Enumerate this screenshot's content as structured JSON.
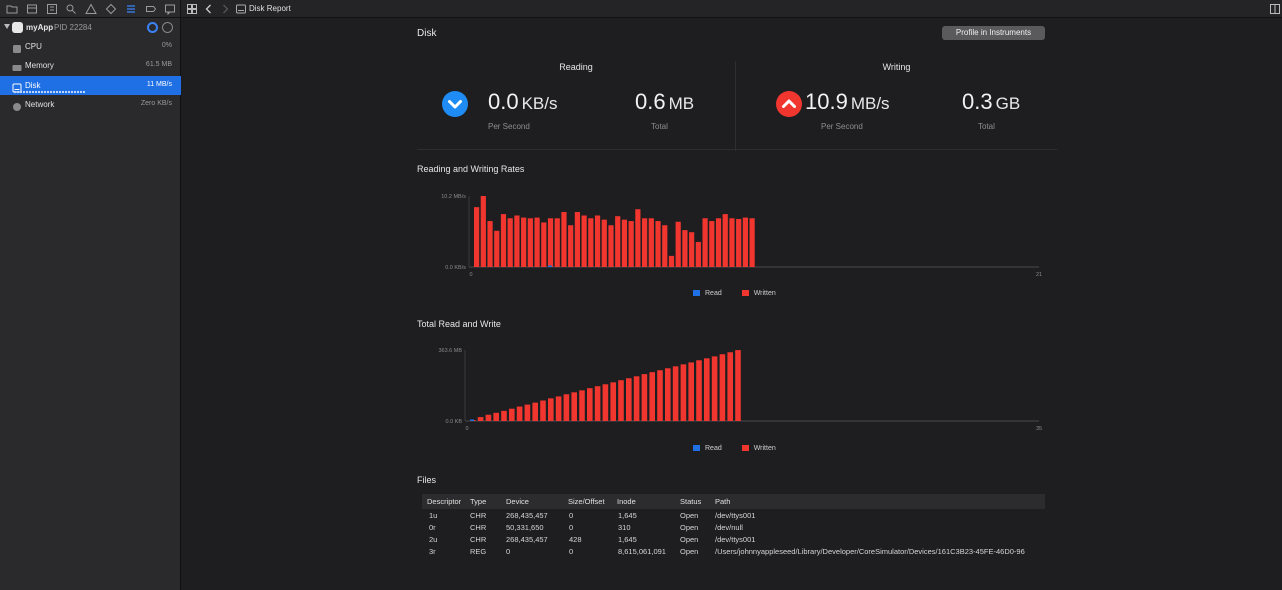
{
  "process": {
    "name": "myApp",
    "pid": "PID 22284"
  },
  "gauges": [
    {
      "label": "CPU",
      "value": "0%",
      "icon": "cpu-icon"
    },
    {
      "label": "Memory",
      "value": "61.5 MB",
      "icon": "memory-icon"
    },
    {
      "label": "Disk",
      "value": "11 MB/s",
      "icon": "disk-icon",
      "selected": true
    },
    {
      "label": "Network",
      "value": "Zero KB/s",
      "icon": "network-icon"
    }
  ],
  "breadcrumb": {
    "label": "Disk Report"
  },
  "page": {
    "title": "Disk",
    "profile_button": "Profile in Instruments"
  },
  "reading": {
    "title": "Reading",
    "rate": {
      "value": "0.0",
      "unit": "KB/s",
      "label": "Per Second"
    },
    "total": {
      "value": "0.6",
      "unit": "MB",
      "label": "Total"
    }
  },
  "writing": {
    "title": "Writing",
    "rate": {
      "value": "10.9",
      "unit": "MB/s",
      "label": "Per Second"
    },
    "total": {
      "value": "0.3",
      "unit": "GB",
      "label": "Total"
    }
  },
  "colors": {
    "read": "#1f6fe5",
    "written": "#f0362f",
    "accent": "#1f6fe5"
  },
  "chart_data": [
    {
      "type": "bar",
      "title": "Reading and Writing Rates",
      "y_tick_labels": [
        "10.2 MB/s",
        "0.0 KB/s"
      ],
      "x_tick_labels": [
        "0",
        "21"
      ],
      "ylim": [
        0,
        10.2
      ],
      "legend": [
        "Read",
        "Written"
      ],
      "legend_position": "bottom",
      "series": [
        {
          "name": "Written",
          "values": [
            8.6,
            10.2,
            6.6,
            5.2,
            7.6,
            7.0,
            7.4,
            7.1,
            7.0,
            7.1,
            6.4,
            7.0,
            7.0,
            7.9,
            6.0,
            7.9,
            7.4,
            7.0,
            7.4,
            6.8,
            6.0,
            7.3,
            6.8,
            6.6,
            8.3,
            7.0,
            7.0,
            6.6,
            6.0,
            1.6,
            6.5,
            5.3,
            5.0,
            3.6,
            7.0,
            6.6,
            7.0,
            7.6,
            7.0,
            6.9,
            7.1,
            7.0
          ]
        },
        {
          "name": "Read",
          "values": [
            0,
            0,
            0,
            0,
            0,
            0,
            0,
            0,
            0,
            0,
            0,
            0,
            0,
            0,
            0,
            0,
            0,
            0,
            0,
            0,
            0,
            0,
            0,
            0,
            0,
            0,
            0,
            0,
            0,
            0,
            0,
            0,
            0,
            0,
            0,
            0,
            0,
            0,
            0,
            0,
            0,
            0
          ]
        }
      ]
    },
    {
      "type": "bar",
      "title": "Total Read and Write",
      "y_tick_labels": [
        "363.6 MB",
        "0.0 KB"
      ],
      "x_tick_labels": [
        "0",
        "35"
      ],
      "ylim": [
        0,
        363.6
      ],
      "legend": [
        "Read",
        "Written"
      ],
      "legend_position": "bottom",
      "series": [
        {
          "name": "Written",
          "values": [
            5,
            20,
            32,
            42,
            52,
            63,
            74,
            84,
            94,
            105,
            116,
            126,
            137,
            147,
            157,
            168,
            178,
            188,
            198,
            209,
            219,
            229,
            240,
            250,
            260,
            270,
            280,
            290,
            300,
            311,
            321,
            331,
            342,
            352,
            363
          ]
        },
        {
          "name": "Read",
          "values": [
            0,
            0,
            0,
            0,
            0,
            0,
            0,
            0,
            0,
            0,
            0,
            0,
            0,
            0,
            0,
            0,
            0,
            0,
            0,
            0,
            0,
            0,
            0,
            0,
            0,
            0,
            0,
            0,
            0,
            0,
            0,
            0,
            0,
            0,
            0
          ]
        }
      ]
    }
  ],
  "files": {
    "title": "Files",
    "columns": [
      "Descriptor",
      "Type",
      "Device",
      "Size/Offset",
      "Inode",
      "Status",
      "Path"
    ],
    "rows": [
      [
        "1u",
        "CHR",
        "268,435,457",
        "0",
        "1,645",
        "Open",
        "/dev/ttys001"
      ],
      [
        "0r",
        "CHR",
        "50,331,650",
        "0",
        "310",
        "Open",
        "/dev/null"
      ],
      [
        "2u",
        "CHR",
        "268,435,457",
        "428",
        "1,645",
        "Open",
        "/dev/ttys001"
      ],
      [
        "3r",
        "REG",
        "0",
        "0",
        "8,615,061,091",
        "Open",
        "/Users/johnnyappleseed/Library/Developer/CoreSimulator/Devices/161C3B23-45FE-46D0-96"
      ]
    ]
  }
}
